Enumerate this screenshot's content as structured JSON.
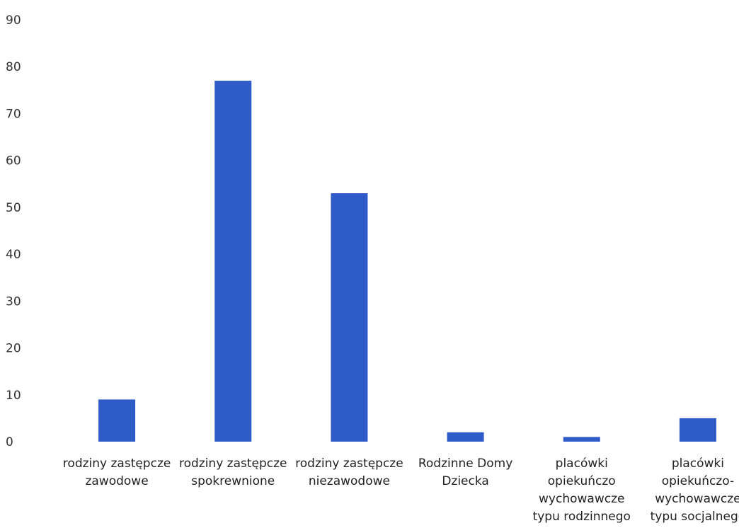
{
  "chart_data": {
    "type": "bar",
    "categories": [
      [
        "rodziny zastępcze",
        "zawodowe"
      ],
      [
        "rodziny zastępcze",
        "spokrewnione"
      ],
      [
        "rodziny zastępcze",
        "niezawodowe"
      ],
      [
        "Rodzinne Domy",
        "Dziecka"
      ],
      [
        "placówki",
        "opiekuńczo",
        "wychowawcze",
        "typu rodzinnego"
      ],
      [
        "placówki",
        "opiekuńczo-",
        "wychowawcze",
        "typu socjalnego"
      ]
    ],
    "values": [
      9,
      77,
      53,
      2,
      1,
      5
    ],
    "ylim": [
      0,
      90
    ],
    "yticks": [
      0,
      10,
      20,
      30,
      40,
      50,
      60,
      70,
      80,
      90
    ],
    "grid": false,
    "legend": "none",
    "bar_color": "#2F5BC8"
  }
}
